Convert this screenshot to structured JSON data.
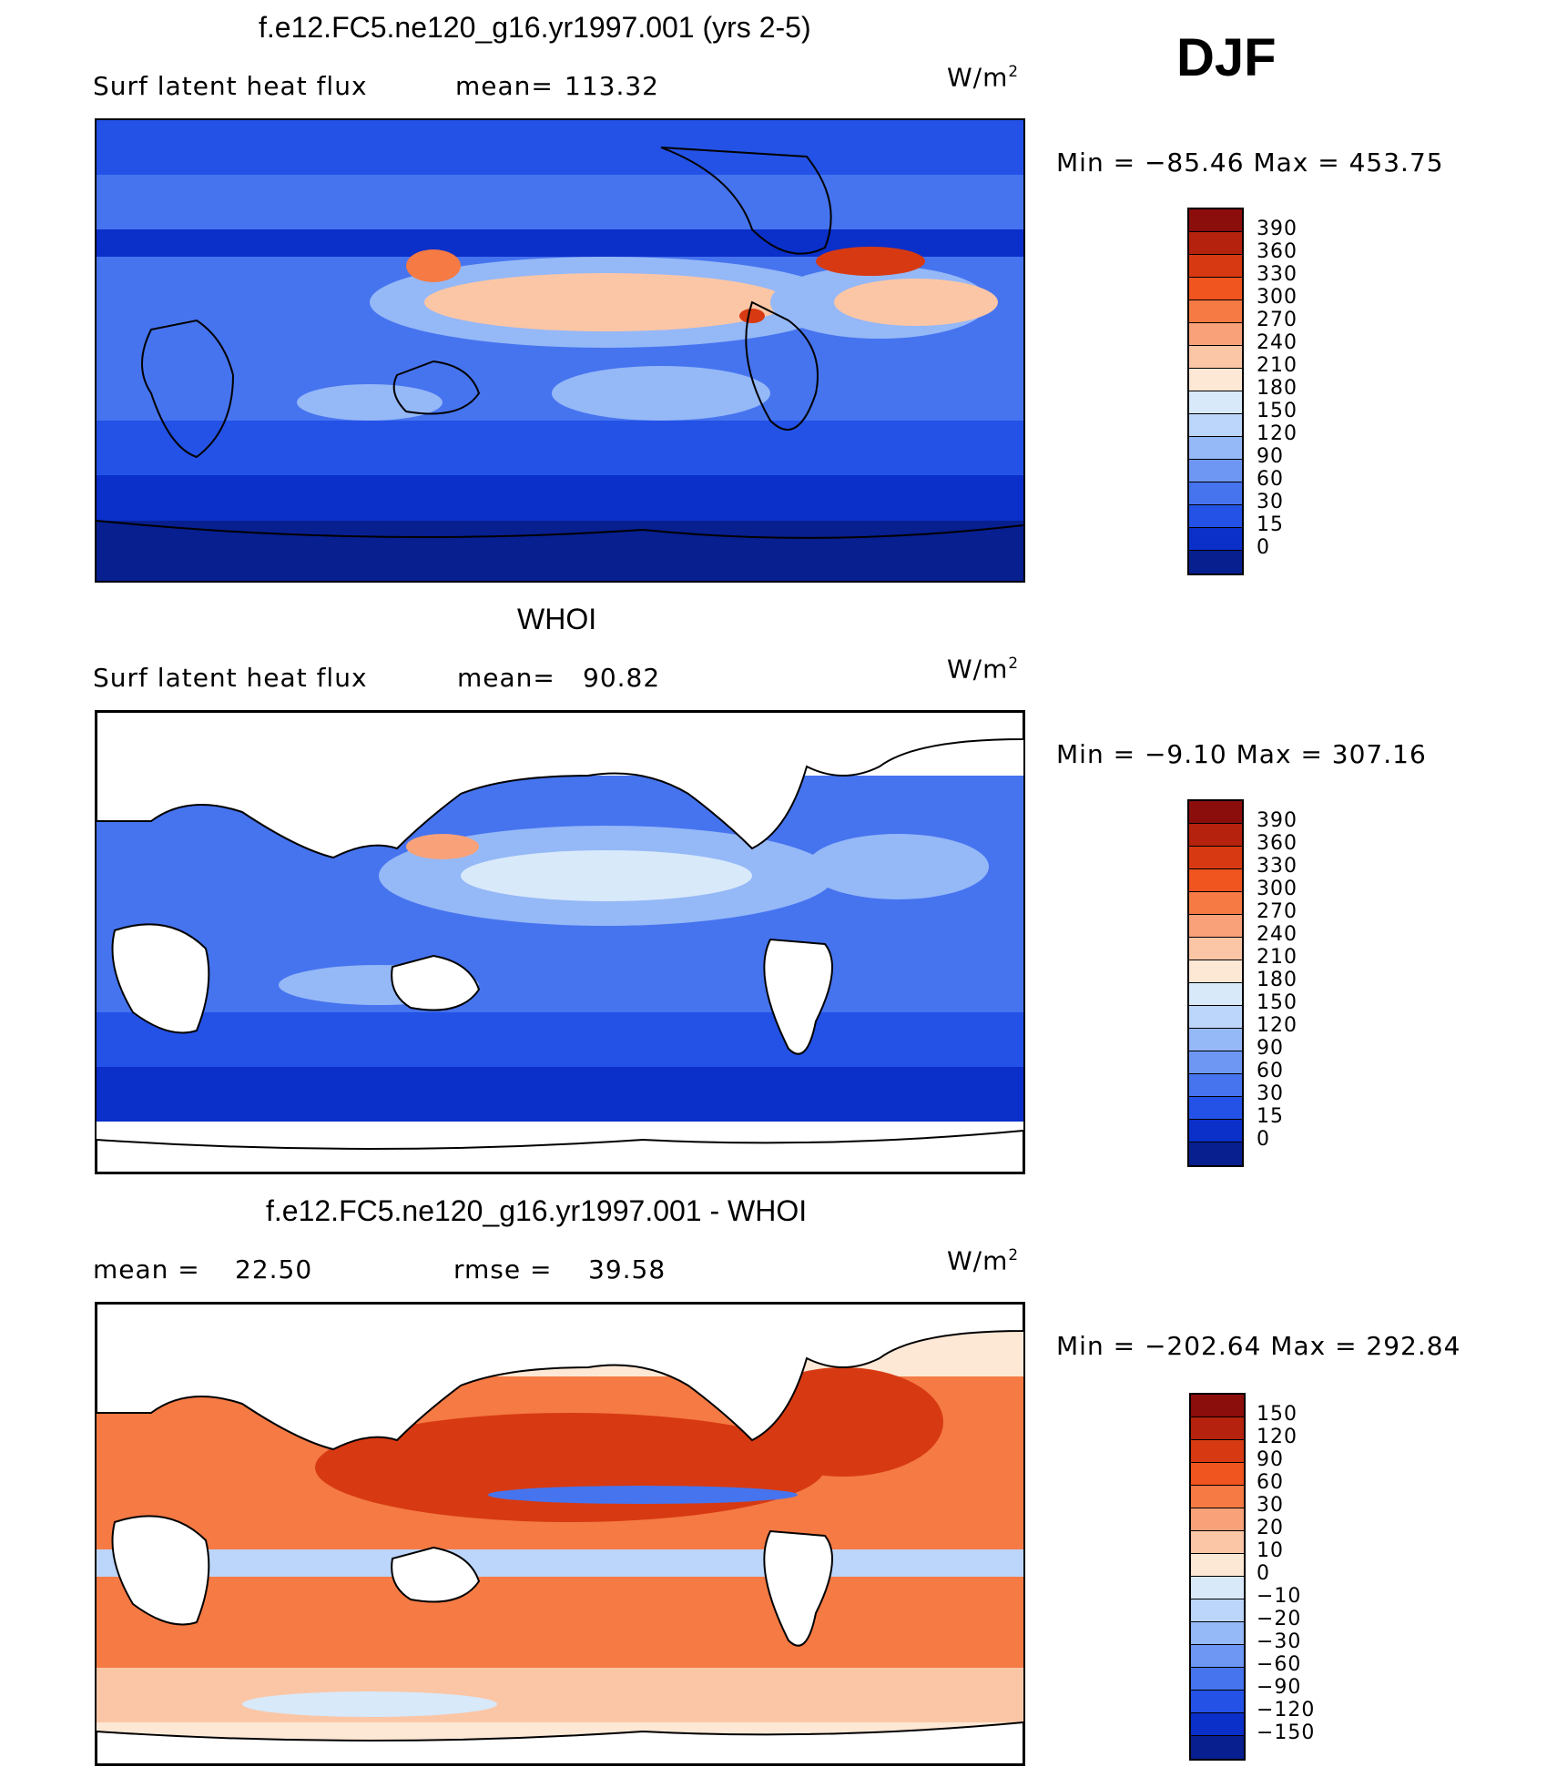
{
  "season": "DJF",
  "panels": [
    {
      "title": "f.e12.FC5.ne120_g16.yr1997.001 (yrs 2-5)",
      "left_label": "Surf  latent  heat  flux",
      "stat_label": "mean=",
      "stat_value": "113.32",
      "stat2_label": "",
      "stat2_value": "",
      "units_base": "W/m",
      "units_exp": "2",
      "minmax_text": "Min  =  −85.46  Max  =  453.75",
      "colorbar_labels": [
        "390",
        "360",
        "330",
        "300",
        "270",
        "240",
        "210",
        "180",
        "150",
        "120",
        "90",
        "60",
        "30",
        "15",
        "0"
      ],
      "colorbar_colors": [
        "#8b0d0c",
        "#b5220d",
        "#d73a12",
        "#f0541f",
        "#f57a44",
        "#f9a27a",
        "#fbc6a6",
        "#fde7d5",
        "#d8e9fa",
        "#bcd5fb",
        "#95b8f7",
        "#6d97f2",
        "#4674ef",
        "#2452e6",
        "#0b2fc9",
        "#071f8f"
      ]
    },
    {
      "title": "WHOI",
      "left_label": "Surf  latent  heat  flux",
      "stat_label": "mean=",
      "stat_value": "90.82",
      "stat2_label": "",
      "stat2_value": "",
      "units_base": "W/m",
      "units_exp": "2",
      "minmax_text": "Min  =   −9.10  Max  =  307.16",
      "colorbar_labels": [
        "390",
        "360",
        "330",
        "300",
        "270",
        "240",
        "210",
        "180",
        "150",
        "120",
        "90",
        "60",
        "30",
        "15",
        "0"
      ],
      "colorbar_colors": [
        "#8b0d0c",
        "#b5220d",
        "#d73a12",
        "#f0541f",
        "#f57a44",
        "#f9a27a",
        "#fbc6a6",
        "#fde7d5",
        "#d8e9fa",
        "#bcd5fb",
        "#95b8f7",
        "#6d97f2",
        "#4674ef",
        "#2452e6",
        "#0b2fc9",
        "#071f8f"
      ]
    },
    {
      "title": "f.e12.FC5.ne120_g16.yr1997.001 - WHOI",
      "left_label": "mean  =",
      "stat_label": "22.50",
      "stat_value": "",
      "stat2_label": "rmse  =",
      "stat2_value": "39.58",
      "units_base": "W/m",
      "units_exp": "2",
      "minmax_text": "Min  =  −202.64  Max  =  292.84",
      "colorbar_labels": [
        "150",
        "120",
        "90",
        "60",
        "30",
        "20",
        "10",
        "0",
        "−10",
        "−20",
        "−30",
        "−60",
        "−90",
        "−120",
        "−150"
      ],
      "colorbar_colors": [
        "#8b0d0c",
        "#b5220d",
        "#d73a12",
        "#f0541f",
        "#f57a44",
        "#f9a27a",
        "#fbc6a6",
        "#fde7d5",
        "#d8e9fa",
        "#bcd5fb",
        "#95b8f7",
        "#6d97f2",
        "#4674ef",
        "#2452e6",
        "#0b2fc9",
        "#071f8f"
      ]
    }
  ],
  "colors": {
    "ocean_deep": "#0b2fc9",
    "ocean_mid": "#4674ef",
    "ocean_light": "#95b8f7",
    "warm": "#f57a44",
    "warm_strong": "#d73a12",
    "land": "#ffffff"
  }
}
